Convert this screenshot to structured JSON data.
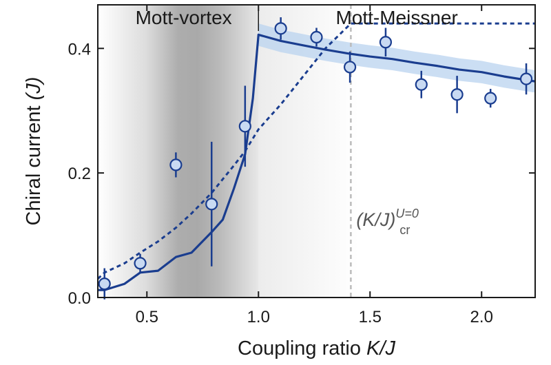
{
  "chart_data": {
    "type": "line",
    "xlabel_text": "Coupling ratio ",
    "xlabel_italic": "K/J",
    "ylabel_text": "Chiral current ",
    "ylabel_italic": "(J)",
    "xlim": [
      0.28,
      2.24
    ],
    "ylim": [
      0.0,
      0.47
    ],
    "xticks": [
      0.5,
      1.0,
      1.5,
      2.0
    ],
    "xtick_labels": [
      "0.5",
      "1.0",
      "1.5",
      "2.0"
    ],
    "yticks": [
      0.0,
      0.2,
      0.4
    ],
    "ytick_labels": [
      "0.0",
      "0.2",
      "0.4"
    ],
    "regions": [
      {
        "label": "Mott-vortex",
        "x_range": [
          0.28,
          1.0
        ]
      },
      {
        "label": "Mott-Meissner",
        "x_range": [
          1.0,
          2.24
        ]
      }
    ],
    "critical_line": {
      "x": 1.414
    },
    "annotation": {
      "main": "(K/J)",
      "sub": "cr",
      "sup": "U=0"
    },
    "experiment": {
      "x": [
        0.31,
        0.47,
        0.63,
        0.79,
        0.94,
        1.1,
        1.26,
        1.41,
        1.57,
        1.73,
        1.89,
        2.04,
        2.2
      ],
      "y": [
        0.022,
        0.055,
        0.213,
        0.15,
        0.275,
        0.432,
        0.418,
        0.37,
        0.41,
        0.342,
        0.326,
        0.32,
        0.351
      ],
      "err": [
        0.025,
        0.015,
        0.02,
        0.1,
        0.065,
        0.018,
        0.015,
        0.025,
        0.023,
        0.022,
        0.03,
        0.015,
        0.025
      ]
    },
    "theory_solid": {
      "x": [
        0.28,
        0.31,
        0.4,
        0.47,
        0.55,
        0.63,
        0.7,
        0.79,
        0.84,
        0.89,
        0.94,
        0.975,
        1.0,
        1.1,
        1.2,
        1.3,
        1.4,
        1.5,
        1.6,
        1.7,
        1.8,
        1.9,
        2.0,
        2.1,
        2.24
      ],
      "y": [
        0.012,
        0.012,
        0.022,
        0.04,
        0.043,
        0.065,
        0.072,
        0.105,
        0.125,
        0.175,
        0.23,
        0.32,
        0.422,
        0.412,
        0.405,
        0.398,
        0.392,
        0.387,
        0.383,
        0.377,
        0.372,
        0.366,
        0.362,
        0.355,
        0.347
      ],
      "band": 0.018
    },
    "theory_dashed": {
      "x": [
        0.28,
        0.31,
        0.4,
        0.47,
        0.55,
        0.63,
        0.7,
        0.79,
        0.84,
        0.89,
        0.94,
        1.0,
        1.1,
        1.2,
        1.3,
        1.414,
        2.24
      ],
      "y": [
        0.03,
        0.04,
        0.055,
        0.072,
        0.09,
        0.112,
        0.135,
        0.168,
        0.19,
        0.212,
        0.235,
        0.27,
        0.31,
        0.355,
        0.4,
        0.44,
        0.44
      ]
    },
    "colors": {
      "line": "#1a3d8f",
      "marker_fill": "#c9daf2",
      "band": "#b9d3ef",
      "shade": "#a9a9a9",
      "critical": "#bbbbbb"
    }
  }
}
